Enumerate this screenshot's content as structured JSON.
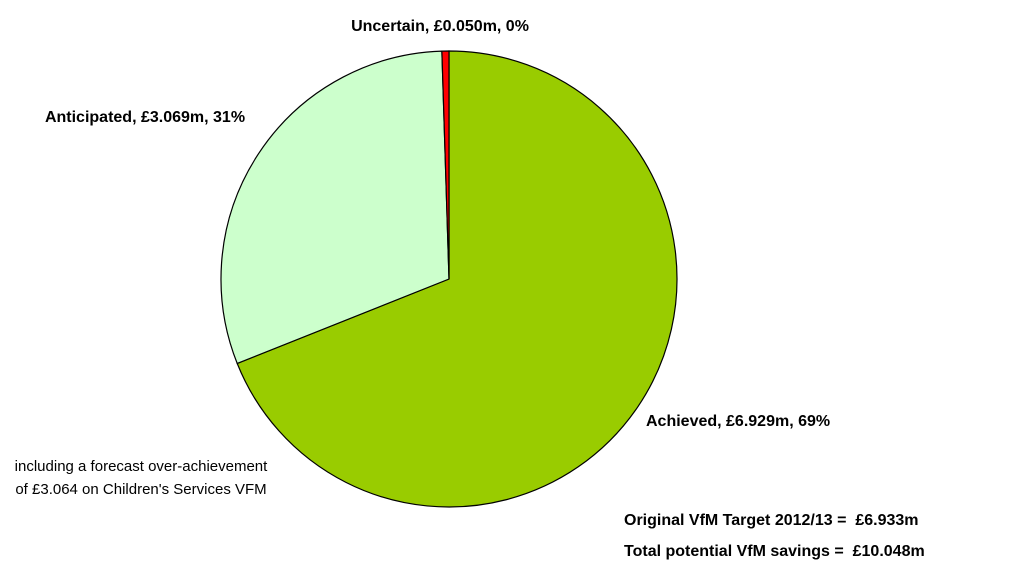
{
  "chart_data": {
    "type": "pie",
    "values": [
      6.929,
      3.069,
      0.05
    ],
    "value_labels": [
      "Achieved, £6.929m, 69%",
      "Anticipated, £3.069m, 31%",
      "Uncertain, £0.050m, 0%"
    ],
    "colors": [
      "#99cc00",
      "#ccffcc",
      "#ff0000"
    ],
    "annotations": [
      "including a forecast over-achievement of £3.064 on Children's Services VFM",
      "Original VfM Target 2012/13 =  £6.933m",
      "Total potential VfM savings =  £10.048m"
    ]
  }
}
